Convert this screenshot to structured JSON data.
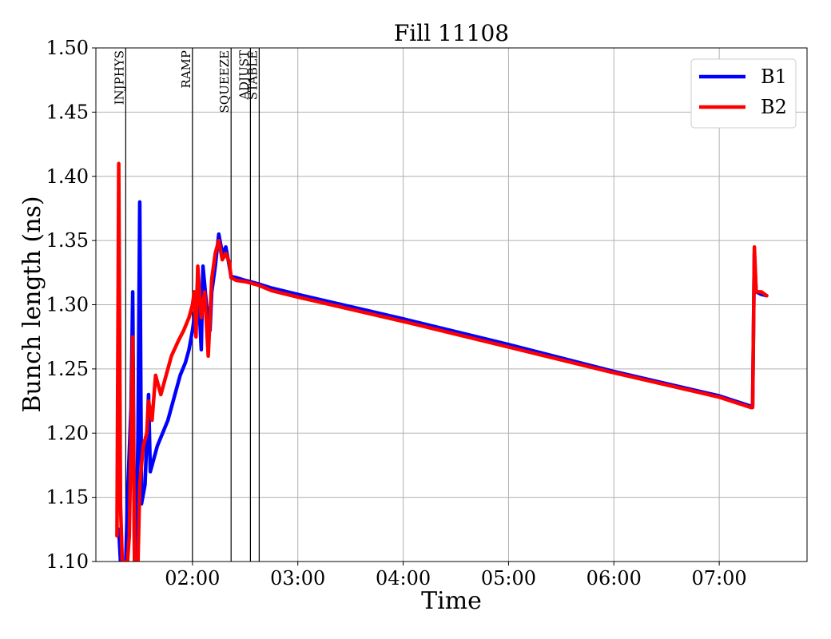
{
  "chart_data": {
    "type": "line",
    "title": "Fill 11108",
    "xlabel": "Time",
    "ylabel": "Bunch length (ns)",
    "x_unit": "HH:MM",
    "xlim": [
      "01:05",
      "07:50"
    ],
    "ylim": [
      1.1,
      1.5
    ],
    "xticks": [
      "02:00",
      "03:00",
      "04:00",
      "05:00",
      "06:00",
      "07:00"
    ],
    "yticks": [
      "1.10",
      "1.15",
      "1.20",
      "1.25",
      "1.30",
      "1.35",
      "1.40",
      "1.45",
      "1.50"
    ],
    "grid": true,
    "legend_position": "top-right",
    "phases": [
      {
        "label": "INJPHYS",
        "x": "01:22"
      },
      {
        "label": "RAMP",
        "x": "02:00"
      },
      {
        "label": "SQUEEZE",
        "x": "02:22"
      },
      {
        "label": "ADJUST",
        "x": "02:33"
      },
      {
        "label": "STABLE",
        "x": "02:38"
      }
    ],
    "series": [
      {
        "name": "B1",
        "color": "#0000ff",
        "points": [
          [
            "01:18",
            1.125
          ],
          [
            "01:19",
            1.1
          ],
          [
            "01:20",
            1.1
          ],
          [
            "01:22",
            1.1
          ],
          [
            "01:23",
            1.15
          ],
          [
            "01:25",
            1.22
          ],
          [
            "01:26",
            1.31
          ],
          [
            "01:27",
            1.1
          ],
          [
            "01:28",
            1.1
          ],
          [
            "01:29",
            1.2
          ],
          [
            "01:30",
            1.38
          ],
          [
            "01:31",
            1.145
          ],
          [
            "01:33",
            1.16
          ],
          [
            "01:35",
            1.23
          ],
          [
            "01:36",
            1.17
          ],
          [
            "01:38",
            1.18
          ],
          [
            "01:40",
            1.19
          ],
          [
            "01:43",
            1.2
          ],
          [
            "01:46",
            1.21
          ],
          [
            "01:50",
            1.23
          ],
          [
            "01:53",
            1.245
          ],
          [
            "01:56",
            1.255
          ],
          [
            "01:58",
            1.265
          ],
          [
            "02:00",
            1.28
          ],
          [
            "02:02",
            1.3
          ],
          [
            "02:03",
            1.32
          ],
          [
            "02:05",
            1.265
          ],
          [
            "02:06",
            1.33
          ],
          [
            "02:08",
            1.3
          ],
          [
            "02:10",
            1.28
          ],
          [
            "02:11",
            1.31
          ],
          [
            "02:13",
            1.33
          ],
          [
            "02:15",
            1.355
          ],
          [
            "02:17",
            1.34
          ],
          [
            "02:19",
            1.345
          ],
          [
            "02:21",
            1.33
          ],
          [
            "02:22",
            1.322
          ],
          [
            "02:25",
            1.321
          ],
          [
            "02:30",
            1.319
          ],
          [
            "02:33",
            1.318
          ],
          [
            "02:38",
            1.316
          ],
          [
            "02:45",
            1.313
          ],
          [
            "03:00",
            1.308
          ],
          [
            "04:00",
            1.289
          ],
          [
            "05:00",
            1.269
          ],
          [
            "06:00",
            1.248
          ],
          [
            "07:00",
            1.229
          ],
          [
            "07:18",
            1.221
          ],
          [
            "07:19",
            1.221
          ],
          [
            "07:20",
            1.34
          ],
          [
            "07:21",
            1.31
          ],
          [
            "07:24",
            1.308
          ],
          [
            "07:27",
            1.307
          ]
        ]
      },
      {
        "name": "B2",
        "color": "#ff0000",
        "points": [
          [
            "01:17",
            1.12
          ],
          [
            "01:18",
            1.41
          ],
          [
            "01:19",
            1.145
          ],
          [
            "01:20",
            1.1
          ],
          [
            "01:21",
            1.1
          ],
          [
            "01:23",
            1.1
          ],
          [
            "01:24",
            1.12
          ],
          [
            "01:26",
            1.275
          ],
          [
            "01:27",
            1.1
          ],
          [
            "01:28",
            1.1
          ],
          [
            "01:29",
            1.1
          ],
          [
            "01:30",
            1.16
          ],
          [
            "01:32",
            1.19
          ],
          [
            "01:34",
            1.2
          ],
          [
            "01:35",
            1.225
          ],
          [
            "01:37",
            1.21
          ],
          [
            "01:39",
            1.245
          ],
          [
            "01:42",
            1.23
          ],
          [
            "01:45",
            1.245
          ],
          [
            "01:48",
            1.26
          ],
          [
            "01:52",
            1.272
          ],
          [
            "01:55",
            1.28
          ],
          [
            "01:58",
            1.29
          ],
          [
            "02:00",
            1.3
          ],
          [
            "02:01",
            1.31
          ],
          [
            "02:02",
            1.275
          ],
          [
            "02:03",
            1.33
          ],
          [
            "02:05",
            1.29
          ],
          [
            "02:07",
            1.31
          ],
          [
            "02:09",
            1.26
          ],
          [
            "02:11",
            1.32
          ],
          [
            "02:13",
            1.34
          ],
          [
            "02:15",
            1.35
          ],
          [
            "02:17",
            1.335
          ],
          [
            "02:19",
            1.34
          ],
          [
            "02:21",
            1.333
          ],
          [
            "02:22",
            1.321
          ],
          [
            "02:25",
            1.319
          ],
          [
            "02:30",
            1.318
          ],
          [
            "02:33",
            1.317
          ],
          [
            "02:38",
            1.315
          ],
          [
            "02:45",
            1.311
          ],
          [
            "03:00",
            1.306
          ],
          [
            "04:00",
            1.287
          ],
          [
            "05:00",
            1.267
          ],
          [
            "06:00",
            1.247
          ],
          [
            "07:00",
            1.228
          ],
          [
            "07:18",
            1.22
          ],
          [
            "07:19",
            1.22
          ],
          [
            "07:20",
            1.345
          ],
          [
            "07:21",
            1.31
          ],
          [
            "07:24",
            1.31
          ],
          [
            "07:27",
            1.307
          ]
        ]
      }
    ]
  }
}
